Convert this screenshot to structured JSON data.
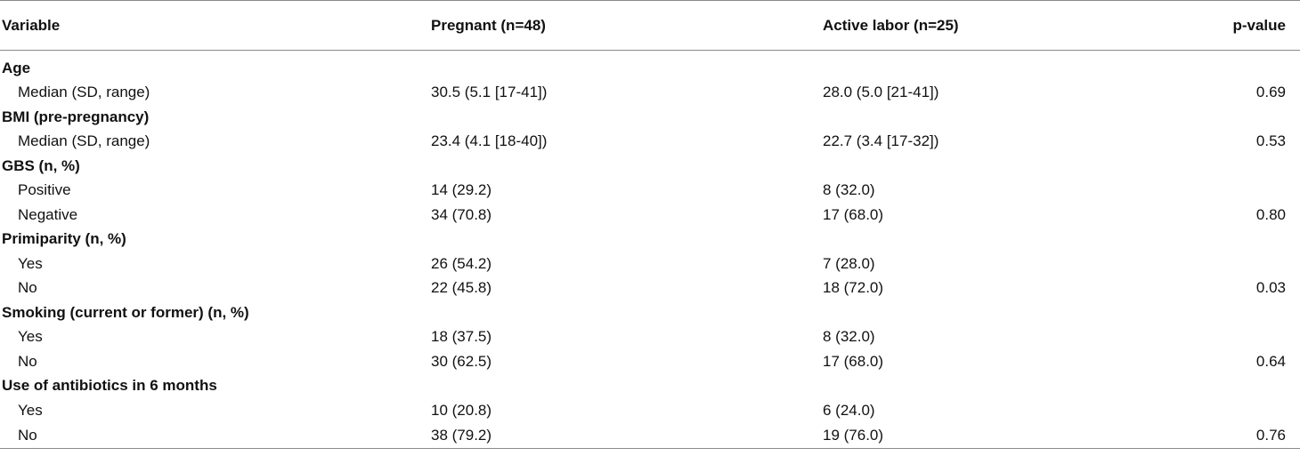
{
  "header": {
    "variable": "Variable",
    "pregnant": "Pregnant (n=48)",
    "active_labor": "Active labor (n=25)",
    "pvalue": "p-value"
  },
  "sections": [
    {
      "title": "Age",
      "rows": [
        {
          "label": "Median (SD, range)",
          "pregnant": "30.5 (5.1 [17-41])",
          "labor": "28.0 (5.0 [21-41])",
          "p": "0.69"
        }
      ]
    },
    {
      "title": "BMI (pre-pregnancy)",
      "rows": [
        {
          "label": "Median (SD, range)",
          "pregnant": "23.4 (4.1 [18-40])",
          "labor": "22.7 (3.4 [17-32])",
          "p": "0.53"
        }
      ]
    },
    {
      "title": "GBS (n, %)",
      "rows": [
        {
          "label": "Positive",
          "pregnant": "14 (29.2)",
          "labor": "8 (32.0)",
          "p": ""
        },
        {
          "label": "Negative",
          "pregnant": "34 (70.8)",
          "labor": "17 (68.0)",
          "p": "0.80"
        }
      ]
    },
    {
      "title": "Primiparity (n, %)",
      "rows": [
        {
          "label": "Yes",
          "pregnant": "26 (54.2)",
          "labor": "7 (28.0)",
          "p": ""
        },
        {
          "label": "No",
          "pregnant": "22 (45.8)",
          "labor": "18 (72.0)",
          "p": "0.03"
        }
      ]
    },
    {
      "title": "Smoking (current or former) (n, %)",
      "rows": [
        {
          "label": "Yes",
          "pregnant": "18 (37.5)",
          "labor": "8 (32.0)",
          "p": ""
        },
        {
          "label": "No",
          "pregnant": "30 (62.5)",
          "labor": "17 (68.0)",
          "p": "0.64"
        }
      ]
    },
    {
      "title": "Use of antibiotics in 6 months",
      "rows": [
        {
          "label": "Yes",
          "pregnant": "10 (20.8)",
          "labor": "6 (24.0)",
          "p": ""
        },
        {
          "label": "No",
          "pregnant": "38 (79.2)",
          "labor": "19 (76.0)",
          "p": "0.76"
        }
      ]
    }
  ]
}
